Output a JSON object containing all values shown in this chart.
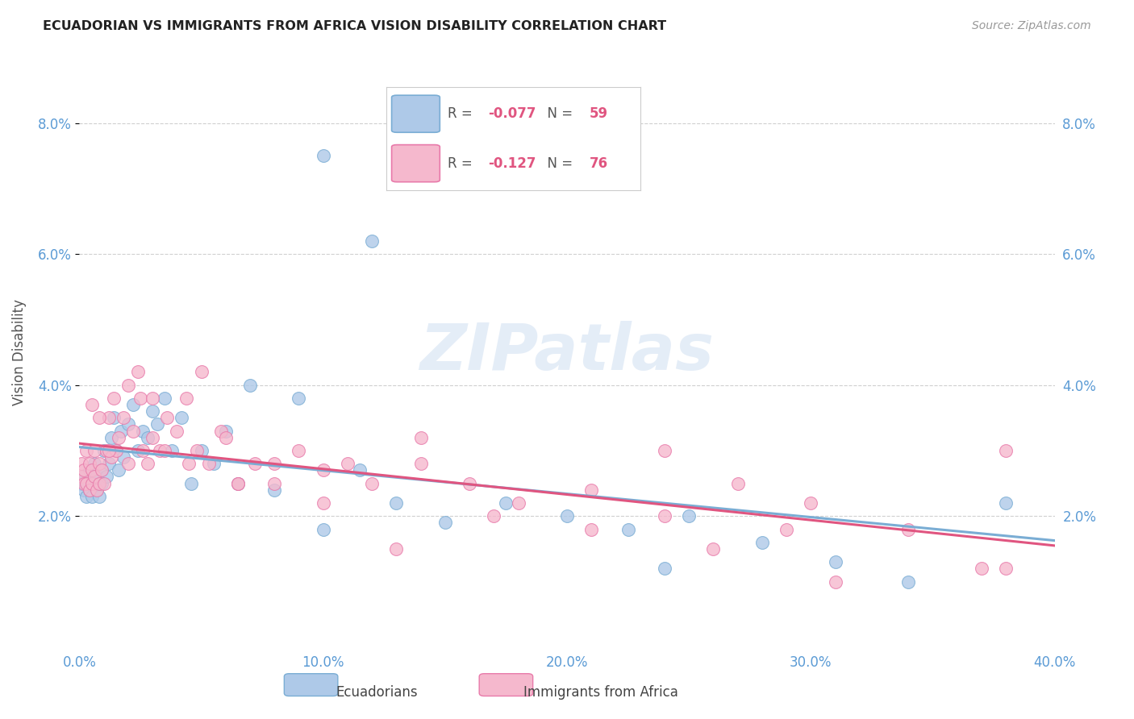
{
  "title": "ECUADORIAN VS IMMIGRANTS FROM AFRICA VISION DISABILITY CORRELATION CHART",
  "source": "Source: ZipAtlas.com",
  "ylabel": "Vision Disability",
  "xlim": [
    0.0,
    0.4
  ],
  "ylim": [
    0.0,
    0.09
  ],
  "yticks": [
    0.02,
    0.04,
    0.06,
    0.08
  ],
  "ytick_labels": [
    "2.0%",
    "4.0%",
    "6.0%",
    "8.0%"
  ],
  "xtick_labels": [
    "0.0%",
    "",
    "",
    "",
    "",
    "",
    "",
    "",
    "",
    "",
    "10.0%",
    "",
    "",
    "",
    "",
    "",
    "",
    "",
    "",
    "",
    "20.0%",
    "",
    "",
    "",
    "",
    "",
    "",
    "",
    "",
    "",
    "30.0%",
    "",
    "",
    "",
    "",
    "",
    "",
    "",
    "",
    "",
    "40.0%"
  ],
  "series1_name": "Ecuadorians",
  "series1_color": "#aec9e8",
  "series1_R": -0.077,
  "series1_N": 59,
  "series1_edge_color": "#7aadd4",
  "series2_name": "Immigrants from Africa",
  "series2_color": "#f5b8cd",
  "series2_R": -0.127,
  "series2_N": 76,
  "series2_edge_color": "#e87aaa",
  "regression1_color": "#7aadd4",
  "regression2_color": "#e05580",
  "watermark": "ZIPatlas",
  "bg_color": "#ffffff",
  "grid_color": "#d0d0d0",
  "title_color": "#222222",
  "axis_label_color": "#5b9bd5",
  "ylabel_color": "#555555",
  "legend_text_color": "#555555",
  "legend_value_color": "#e05580",
  "ecuadorians_x": [
    0.001,
    0.002,
    0.002,
    0.003,
    0.003,
    0.004,
    0.004,
    0.005,
    0.005,
    0.006,
    0.006,
    0.007,
    0.007,
    0.008,
    0.008,
    0.009,
    0.009,
    0.01,
    0.011,
    0.012,
    0.013,
    0.014,
    0.015,
    0.016,
    0.017,
    0.018,
    0.02,
    0.022,
    0.024,
    0.026,
    0.028,
    0.03,
    0.032,
    0.035,
    0.038,
    0.042,
    0.046,
    0.05,
    0.055,
    0.06,
    0.065,
    0.07,
    0.08,
    0.09,
    0.1,
    0.115,
    0.13,
    0.15,
    0.175,
    0.2,
    0.225,
    0.25,
    0.28,
    0.31,
    0.34,
    0.1,
    0.12,
    0.24,
    0.38
  ],
  "ecuadorians_y": [
    0.025,
    0.026,
    0.024,
    0.025,
    0.023,
    0.027,
    0.024,
    0.026,
    0.023,
    0.025,
    0.028,
    0.024,
    0.026,
    0.025,
    0.023,
    0.027,
    0.025,
    0.03,
    0.026,
    0.028,
    0.032,
    0.035,
    0.03,
    0.027,
    0.033,
    0.029,
    0.034,
    0.037,
    0.03,
    0.033,
    0.032,
    0.036,
    0.034,
    0.038,
    0.03,
    0.035,
    0.025,
    0.03,
    0.028,
    0.033,
    0.025,
    0.04,
    0.024,
    0.038,
    0.018,
    0.027,
    0.022,
    0.019,
    0.022,
    0.02,
    0.018,
    0.02,
    0.016,
    0.013,
    0.01,
    0.075,
    0.062,
    0.012,
    0.022
  ],
  "africa_x": [
    0.001,
    0.001,
    0.002,
    0.002,
    0.003,
    0.003,
    0.004,
    0.004,
    0.005,
    0.005,
    0.006,
    0.006,
    0.007,
    0.008,
    0.008,
    0.009,
    0.01,
    0.011,
    0.012,
    0.013,
    0.014,
    0.015,
    0.016,
    0.018,
    0.02,
    0.022,
    0.024,
    0.026,
    0.028,
    0.03,
    0.033,
    0.036,
    0.04,
    0.044,
    0.048,
    0.053,
    0.058,
    0.065,
    0.072,
    0.08,
    0.09,
    0.1,
    0.11,
    0.12,
    0.14,
    0.16,
    0.18,
    0.21,
    0.24,
    0.27,
    0.3,
    0.34,
    0.38,
    0.025,
    0.035,
    0.05,
    0.065,
    0.14,
    0.24,
    0.29,
    0.38,
    0.005,
    0.008,
    0.012,
    0.02,
    0.03,
    0.045,
    0.06,
    0.08,
    0.1,
    0.13,
    0.17,
    0.21,
    0.26,
    0.31,
    0.37
  ],
  "africa_y": [
    0.028,
    0.026,
    0.027,
    0.025,
    0.03,
    0.025,
    0.028,
    0.024,
    0.027,
    0.025,
    0.03,
    0.026,
    0.024,
    0.028,
    0.025,
    0.027,
    0.025,
    0.03,
    0.035,
    0.029,
    0.038,
    0.03,
    0.032,
    0.035,
    0.028,
    0.033,
    0.042,
    0.03,
    0.028,
    0.032,
    0.03,
    0.035,
    0.033,
    0.038,
    0.03,
    0.028,
    0.033,
    0.025,
    0.028,
    0.025,
    0.03,
    0.027,
    0.028,
    0.025,
    0.032,
    0.025,
    0.022,
    0.024,
    0.02,
    0.025,
    0.022,
    0.018,
    0.012,
    0.038,
    0.03,
    0.042,
    0.025,
    0.028,
    0.03,
    0.018,
    0.03,
    0.037,
    0.035,
    0.03,
    0.04,
    0.038,
    0.028,
    0.032,
    0.028,
    0.022,
    0.015,
    0.02,
    0.018,
    0.015,
    0.01,
    0.012
  ]
}
